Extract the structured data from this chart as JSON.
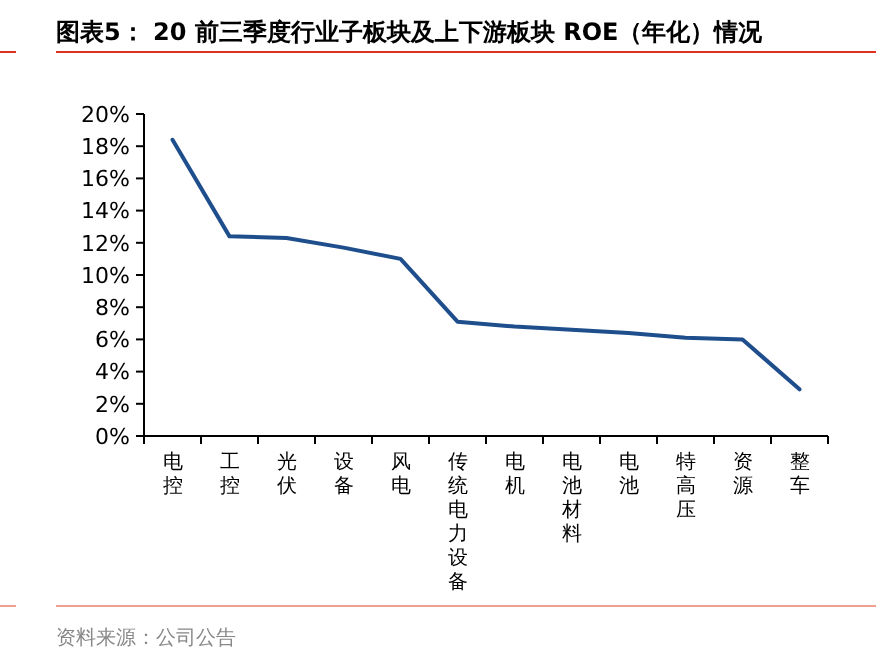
{
  "chart_data": {
    "type": "line",
    "title": "图表5：  20 前三季度行业子板块及上下游板块 ROE（年化）情况",
    "categories": [
      "电控",
      "工控",
      "光伏",
      "设备",
      "风电",
      "传统电力设备",
      "电机",
      "电池材料",
      "电池",
      "特高压",
      "资源",
      "整车"
    ],
    "series": [
      {
        "color": "#1f4e8c",
        "values": [
          18.4,
          12.4,
          12.3,
          11.7,
          11.0,
          7.1,
          6.8,
          6.6,
          6.4,
          6.1,
          6.0,
          2.9
        ]
      }
    ],
    "ylim": [
      0,
      20
    ],
    "yticks": [
      {
        "value": 0,
        "label": "0%"
      },
      {
        "value": 2,
        "label": "2%"
      },
      {
        "value": 4,
        "label": "4%"
      },
      {
        "value": 6,
        "label": "6%"
      },
      {
        "value": 8,
        "label": "8%"
      },
      {
        "value": 10,
        "label": "10%"
      },
      {
        "value": 12,
        "label": "12%"
      },
      {
        "value": 14,
        "label": "14%"
      },
      {
        "value": 16,
        "label": "16%"
      },
      {
        "value": 18,
        "label": "18%"
      },
      {
        "value": 20,
        "label": "20%"
      }
    ],
    "annotations": [
      "资料来源：公司公告"
    ],
    "marker": "none",
    "line_style": "solid"
  }
}
